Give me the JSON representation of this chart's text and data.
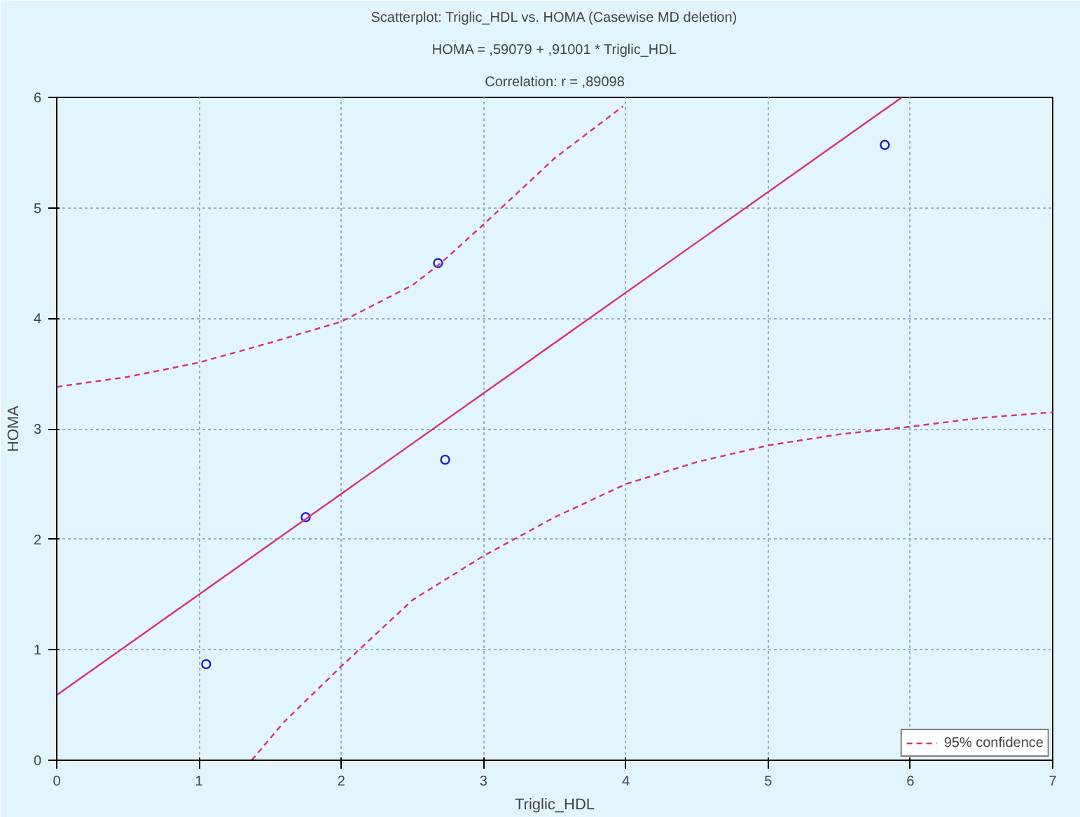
{
  "chart_data": {
    "type": "scatter",
    "title": "Scatterplot: Triglic_HDL vs. HOMA (Casewise MD deletion)",
    "subtitle": "HOMA = ,59079 + ,91001 * Triglic_HDL",
    "annotations": [
      "Correlation: r = ,89098"
    ],
    "xlabel": "Triglic_HDL",
    "ylabel": "HOMA",
    "xlim": [
      0,
      7
    ],
    "xticks": [
      0,
      1,
      2,
      3,
      4,
      5,
      6,
      7
    ],
    "ylim": [
      0,
      6
    ],
    "yticks": [
      0,
      1,
      2,
      3,
      4,
      5,
      6
    ],
    "grid": true,
    "legend": "bottom right",
    "series": [
      {
        "marker": "circle",
        "color": "#2020c0",
        "x": [
          1.05,
          1.75,
          2.68,
          2.73,
          5.82
        ],
        "values": [
          0.87,
          2.2,
          4.5,
          2.72,
          5.57
        ]
      },
      {
        "type": "line",
        "line_style": "solid",
        "color": "#d8307a",
        "x": [
          0,
          5.94
        ],
        "values": [
          0.59,
          6.0
        ]
      },
      {
        "type": "line",
        "name": "95% confidence",
        "line_style": "dashed",
        "color": "#d8307a",
        "x": [
          0,
          0.5,
          1,
          1.5,
          2,
          2.5,
          2.7,
          3,
          3.5,
          3.98
        ],
        "values": [
          3.38,
          3.47,
          3.6,
          3.78,
          3.97,
          4.3,
          4.5,
          4.85,
          5.45,
          5.92
        ]
      },
      {
        "type": "line",
        "line_style": "dashed",
        "color": "#d8307a",
        "x": [
          1.37,
          1.6,
          2,
          2.5,
          3,
          3.5,
          4,
          4.5,
          5,
          5.5,
          6,
          6.5,
          7
        ],
        "values": [
          0,
          0.35,
          0.85,
          1.45,
          1.85,
          2.2,
          2.5,
          2.7,
          2.85,
          2.95,
          3.02,
          3.1,
          3.15
        ]
      }
    ]
  }
}
